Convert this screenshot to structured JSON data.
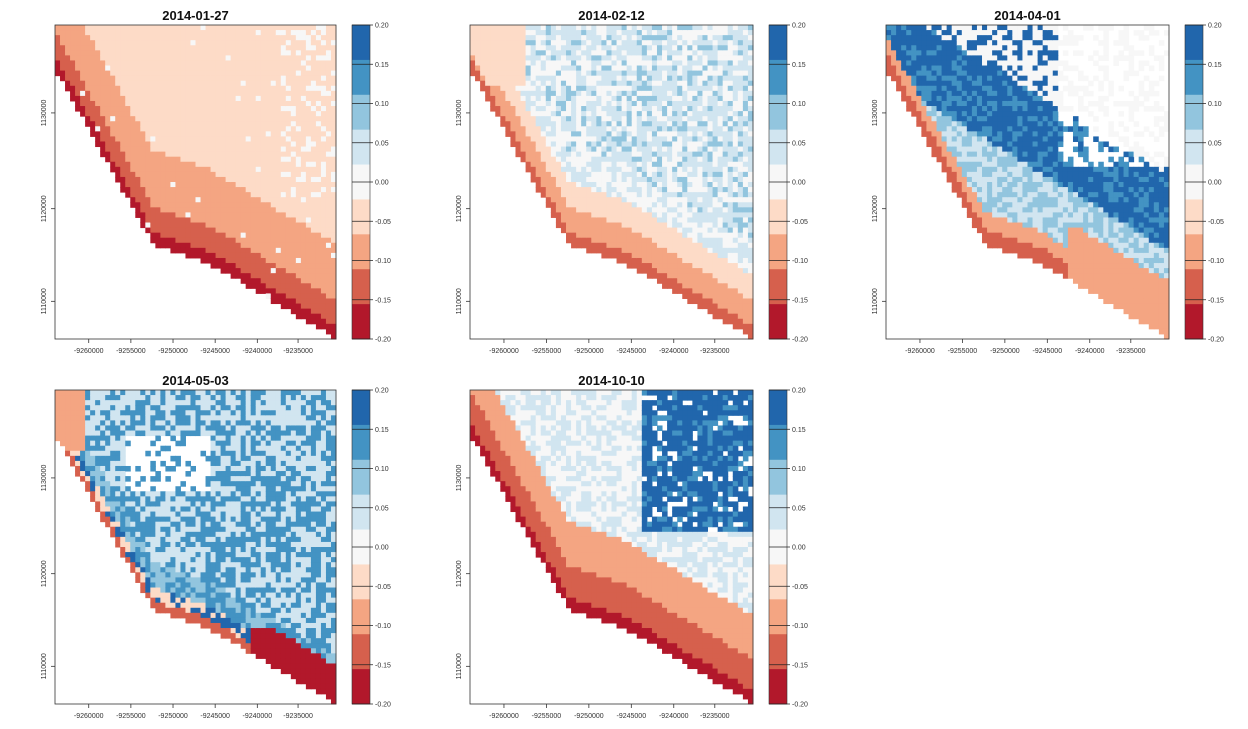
{
  "x_ticks": [
    "-9260000",
    "-9255000",
    "-9250000",
    "-9245000",
    "-9240000",
    "-9235000"
  ],
  "y_ticks": [
    "1130000",
    "1120000",
    "1110000"
  ],
  "colorbar": {
    "labels": [
      "0.20",
      "0.15",
      "0.10",
      "0.05",
      "0.00",
      "-0.05",
      "-0.10",
      "-0.15",
      "-0.20"
    ],
    "colors": [
      "#2166ac",
      "#4393c3",
      "#92c5de",
      "#d1e5f0",
      "#f7f7f7",
      "#fddbc7",
      "#f4a582",
      "#d6604d",
      "#b2182b"
    ]
  },
  "panels": [
    {
      "title": "2014-01-27",
      "theme": "red"
    },
    {
      "title": "2014-02-12",
      "theme": "mix"
    },
    {
      "title": "2014-04-01",
      "theme": "blue_upper"
    },
    {
      "title": "2014-05-03",
      "theme": "blue_mix"
    },
    {
      "title": "2014-10-10",
      "theme": "red_blue"
    }
  ]
}
